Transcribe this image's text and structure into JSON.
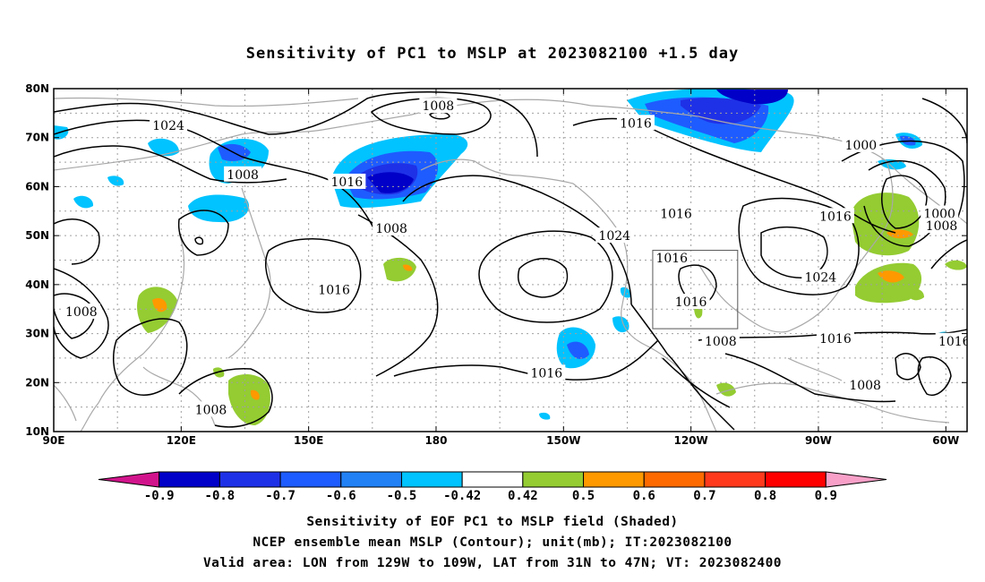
{
  "title": "Sensitivity of PC1 to MSLP at 2023082100 +1.5 day",
  "map": {
    "lon_range": [
      90,
      305
    ],
    "lat_range": [
      10,
      80
    ],
    "lat_labels": [
      "80N",
      "70N",
      "60N",
      "50N",
      "40N",
      "30N",
      "20N",
      "10N"
    ],
    "lon_labels": [
      "90E",
      "120E",
      "150E",
      "180",
      "150W",
      "120W",
      "90W",
      "60W"
    ],
    "valid_box": {
      "lon_w": -129,
      "lon_e": -109,
      "lat_s": 31,
      "lat_n": 47
    },
    "contour_labels": [
      {
        "text": "1008",
        "lon": 180.5,
        "lat": 76.5
      },
      {
        "text": "1024",
        "lon": 117,
        "lat": 72.5
      },
      {
        "text": "1016",
        "lon": -133,
        "lat": 73
      },
      {
        "text": "1000",
        "lon": -80,
        "lat": 68.5
      },
      {
        "text": "1008",
        "lon": 134.5,
        "lat": 62.5
      },
      {
        "text": "1016",
        "lon": 159,
        "lat": 61
      },
      {
        "text": "1008",
        "lon": 169.5,
        "lat": 51.5
      },
      {
        "text": "1016",
        "lon": -123.5,
        "lat": 54.5
      },
      {
        "text": "1024",
        "lon": -138,
        "lat": 50
      },
      {
        "text": "1016",
        "lon": -86,
        "lat": 54
      },
      {
        "text": "1000",
        "lon": -61.5,
        "lat": 54.5
      },
      {
        "text": "1008",
        "lon": -61,
        "lat": 52
      },
      {
        "text": "1016",
        "lon": -124.5,
        "lat": 45.5
      },
      {
        "text": "1024",
        "lon": -89.5,
        "lat": 41.5
      },
      {
        "text": "1016",
        "lon": 156,
        "lat": 39
      },
      {
        "text": "1016",
        "lon": -120,
        "lat": 36.5
      },
      {
        "text": "1008",
        "lon": 96.5,
        "lat": 34.5
      },
      {
        "text": "1008",
        "lon": -113,
        "lat": 28.5
      },
      {
        "text": "1016",
        "lon": -86,
        "lat": 29
      },
      {
        "text": "1016",
        "lon": -58,
        "lat": 28.5
      },
      {
        "text": "1016",
        "lon": -154,
        "lat": 22
      },
      {
        "text": "1008",
        "lon": -79,
        "lat": 19.5
      },
      {
        "text": "1008",
        "lon": 127,
        "lat": 14.5
      }
    ]
  },
  "colorbar": {
    "labels": [
      "-0.9",
      "-0.8",
      "-0.7",
      "-0.6",
      "-0.5",
      "-0.42",
      "0.42",
      "0.5",
      "0.6",
      "0.7",
      "0.8",
      "0.9"
    ],
    "colors": [
      "#d2148c",
      "#0000c8",
      "#1f31e6",
      "#1e5cff",
      "#2181f5",
      "#00c3ff",
      "#ffffff",
      "#94cc32",
      "#ff9900",
      "#ff6a00",
      "#ff3a1c",
      "#ff0000",
      "#f9a0c8"
    ]
  },
  "caption": {
    "line1": "Sensitivity of EOF PC1 to MSLP field (Shaded)",
    "line2": "NCEP ensemble mean MSLP (Contour); unit(mb); IT:2023082100",
    "line3": "Valid area: LON from 129W to 109W, LAT from 31N to 47N; VT: 2023082400"
  }
}
